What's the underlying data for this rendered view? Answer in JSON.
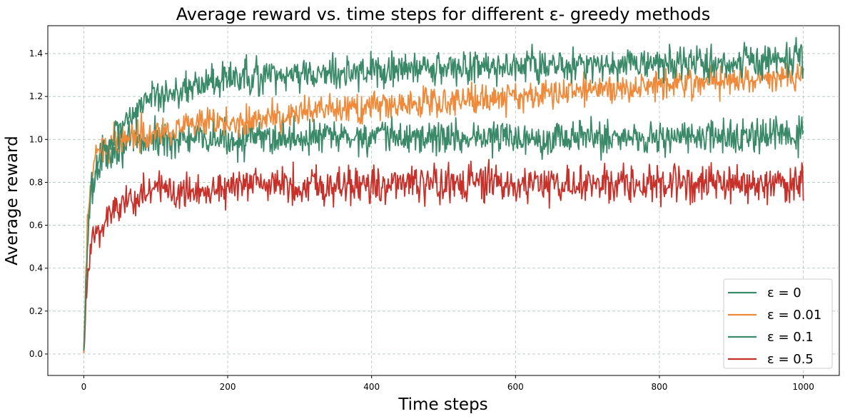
{
  "chart_data": {
    "type": "line",
    "title": "Average reward vs. time steps for different ε- greedy methods",
    "xlabel": "Time steps",
    "ylabel": "Average reward",
    "xlim": [
      -50,
      1050
    ],
    "ylim": [
      -0.1,
      1.53
    ],
    "xticks": [
      0,
      200,
      400,
      600,
      800,
      1000
    ],
    "xtick_labels": [
      "0",
      "200",
      "400",
      "600",
      "800",
      "1000"
    ],
    "yticks": [
      0.0,
      0.2,
      0.4,
      0.6,
      0.8,
      1.0,
      1.2,
      1.4
    ],
    "ytick_labels": [
      "0.0",
      "0.2",
      "0.4",
      "0.6",
      "0.8",
      "1.0",
      "1.2",
      "1.4"
    ],
    "grid": true,
    "legend_position": "lower-right",
    "series": [
      {
        "name": "ε = 0",
        "color": "#3a8a6a",
        "x": [
          0,
          5,
          10,
          20,
          30,
          50,
          75,
          100,
          150,
          200,
          300,
          400,
          500,
          600,
          700,
          800,
          900,
          1000
        ],
        "y": [
          0.0,
          0.55,
          0.78,
          0.9,
          0.94,
          0.97,
          0.99,
          1.0,
          1.0,
          1.0,
          1.01,
          1.01,
          1.01,
          1.01,
          1.01,
          1.01,
          1.01,
          1.02
        ]
      },
      {
        "name": "ε = 0.01",
        "color": "#ef8a3a",
        "x": [
          0,
          5,
          10,
          20,
          30,
          50,
          75,
          100,
          150,
          200,
          300,
          400,
          500,
          600,
          700,
          800,
          900,
          1000
        ],
        "y": [
          0.0,
          0.6,
          0.82,
          0.93,
          0.97,
          1.01,
          1.03,
          1.04,
          1.06,
          1.08,
          1.12,
          1.15,
          1.18,
          1.2,
          1.23,
          1.26,
          1.28,
          1.29
        ]
      },
      {
        "name": "ε = 0.1",
        "color": "#3a8a6a",
        "x": [
          0,
          5,
          10,
          20,
          30,
          50,
          75,
          100,
          150,
          200,
          300,
          400,
          500,
          600,
          700,
          800,
          900,
          1000
        ],
        "y": [
          0.0,
          0.5,
          0.74,
          0.88,
          0.96,
          1.06,
          1.15,
          1.2,
          1.25,
          1.28,
          1.3,
          1.32,
          1.33,
          1.34,
          1.35,
          1.35,
          1.36,
          1.37
        ]
      },
      {
        "name": "ε = 0.5",
        "color": "#c8302a",
        "x": [
          0,
          5,
          10,
          20,
          30,
          50,
          75,
          100,
          150,
          200,
          300,
          400,
          500,
          600,
          700,
          800,
          900,
          1000
        ],
        "y": [
          0.0,
          0.33,
          0.5,
          0.58,
          0.63,
          0.7,
          0.74,
          0.76,
          0.77,
          0.78,
          0.79,
          0.79,
          0.79,
          0.79,
          0.79,
          0.79,
          0.79,
          0.79
        ]
      }
    ]
  }
}
